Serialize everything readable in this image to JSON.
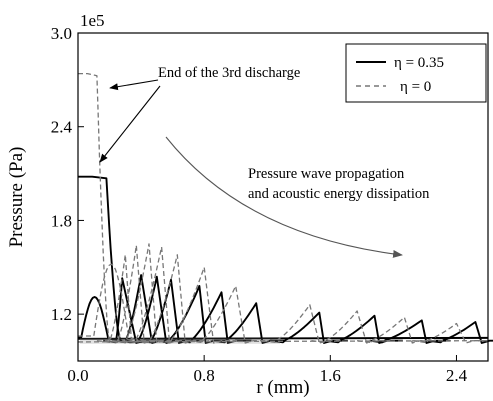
{
  "chart_data": {
    "type": "line",
    "title": "",
    "xlabel": "r (mm)",
    "ylabel": "Pressure (Pa)",
    "scale_label": "1e5",
    "xlim": [
      0,
      2.6
    ],
    "ylim": [
      0.9,
      3.0
    ],
    "xticks": [
      0.0,
      0.8,
      1.6,
      2.4
    ],
    "xtick_labels": [
      "0.0",
      "0.8",
      "1.6",
      "2.4"
    ],
    "yticks": [
      1.2,
      1.8,
      2.4,
      3.0
    ],
    "ytick_labels": [
      "1.2",
      "1.8",
      "2.4",
      "3.0"
    ],
    "grid": false,
    "legend_position": "top-right",
    "baseline": 1.03,
    "series": [
      {
        "name": "η = 0.35",
        "style": "solid",
        "color": "#000000",
        "values": [
          {
            "type": "plateau",
            "peak": 2.08,
            "edge": 0.18,
            "fall": 0.27
          },
          {
            "type": "hump",
            "start": 0.02,
            "peak": 1.31,
            "end": 0.19,
            "base": 1.05
          },
          {
            "type": "pulse",
            "rise": 0.24,
            "peak_r": 0.28,
            "peak": 1.43,
            "fall_end": 0.37
          },
          {
            "type": "pulse",
            "rise": 0.3,
            "peak_r": 0.4,
            "peak": 1.45,
            "fall_end": 0.47
          },
          {
            "type": "pulse",
            "rise": 0.38,
            "peak_r": 0.5,
            "peak": 1.44,
            "fall_end": 0.56
          },
          {
            "type": "pulse",
            "rise": 0.46,
            "peak_r": 0.59,
            "peak": 1.42,
            "fall_end": 0.64
          },
          {
            "type": "pulse",
            "rise": 0.57,
            "peak_r": 0.77,
            "peak": 1.38,
            "fall_end": 0.81
          },
          {
            "type": "pulse",
            "rise": 0.71,
            "peak_r": 0.91,
            "peak": 1.34,
            "fall_end": 0.95
          },
          {
            "type": "pulse",
            "rise": 0.93,
            "peak_r": 1.13,
            "peak": 1.27,
            "fall_end": 1.17
          },
          {
            "type": "pulse",
            "rise": 1.3,
            "peak_r": 1.53,
            "peak": 1.21,
            "fall_end": 1.56
          },
          {
            "type": "pulse",
            "rise": 1.65,
            "peak_r": 1.88,
            "peak": 1.19,
            "fall_end": 1.91
          },
          {
            "type": "pulse",
            "rise": 1.93,
            "peak_r": 2.18,
            "peak": 1.16,
            "fall_end": 2.21
          },
          {
            "type": "pulse",
            "rise": 2.3,
            "peak_r": 2.52,
            "peak": 1.15,
            "fall_end": 2.56
          }
        ]
      },
      {
        "name": "η = 0",
        "style": "dashed",
        "color": "#777777",
        "values": [
          {
            "type": "spike",
            "peak": 2.74,
            "edge": 0.12,
            "fall": 0.2
          },
          {
            "type": "hump",
            "start": 0.1,
            "peak": 1.52,
            "end": 0.32,
            "base": 1.06
          },
          {
            "type": "pulse",
            "rise": 0.2,
            "peak_r": 0.3,
            "peak": 1.58,
            "fall_end": 0.34
          },
          {
            "type": "pulse",
            "rise": 0.25,
            "peak_r": 0.37,
            "peak": 1.64,
            "fall_end": 0.42
          },
          {
            "type": "pulse",
            "rise": 0.3,
            "peak_r": 0.45,
            "peak": 1.65,
            "fall_end": 0.5
          },
          {
            "type": "pulse",
            "rise": 0.36,
            "peak_r": 0.53,
            "peak": 1.63,
            "fall_end": 0.58
          },
          {
            "type": "pulse",
            "rise": 0.45,
            "peak_r": 0.63,
            "peak": 1.58,
            "fall_end": 0.68
          },
          {
            "type": "pulse",
            "rise": 0.58,
            "peak_r": 0.8,
            "peak": 1.5,
            "fall_end": 0.86
          },
          {
            "type": "pulse",
            "rise": 0.78,
            "peak_r": 1.0,
            "peak": 1.38,
            "fall_end": 1.06
          },
          {
            "type": "pulse",
            "rise": 1.25,
            "peak_r": 1.47,
            "peak": 1.26,
            "fall_end": 1.53
          },
          {
            "type": "pulse",
            "rise": 1.56,
            "peak_r": 1.77,
            "peak": 1.22,
            "fall_end": 1.83
          },
          {
            "type": "pulse",
            "rise": 1.85,
            "peak_r": 2.07,
            "peak": 1.18,
            "fall_end": 2.12
          },
          {
            "type": "pulse",
            "rise": 2.2,
            "peak_r": 2.4,
            "peak": 1.14,
            "fall_end": 2.46
          }
        ]
      }
    ],
    "annotations": [
      {
        "text": "End of the 3rd discharge",
        "r": 0.55,
        "p": 2.84
      },
      {
        "text": "Pressure wave propagation",
        "r": 0.9,
        "p": 1.95
      },
      {
        "text": "and acoustic energy dissipation",
        "r": 0.9,
        "p": 1.85
      }
    ]
  }
}
